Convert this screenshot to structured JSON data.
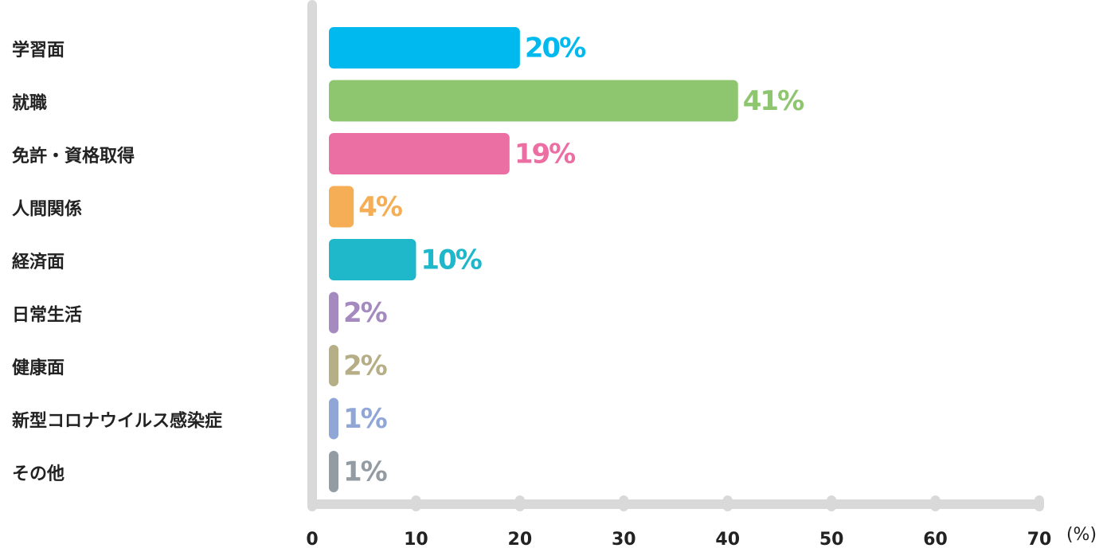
{
  "chart_data": {
    "type": "bar",
    "orientation": "horizontal",
    "categories": [
      "学習面",
      "就職",
      "免許・資格取得",
      "人間関係",
      "経済面",
      "日常生活",
      "健康面",
      "新型コロナウイルス感染症",
      "その他"
    ],
    "values": [
      20,
      41,
      19,
      4,
      10,
      2,
      2,
      1,
      1
    ],
    "value_labels": [
      "20%",
      "41%",
      "19%",
      "4%",
      "10%",
      "2%",
      "2%",
      "1%",
      "1%"
    ],
    "colors": [
      "#00b9ef",
      "#8dc66f",
      "#ec6fa4",
      "#f5ae56",
      "#1fb8cb",
      "#a58abf",
      "#b6ae86",
      "#8fa6d6",
      "#939ba3"
    ],
    "xlim": [
      0,
      70
    ],
    "xticks": [
      0,
      10,
      20,
      30,
      40,
      50,
      60,
      70
    ],
    "x_unit": "(%)"
  }
}
